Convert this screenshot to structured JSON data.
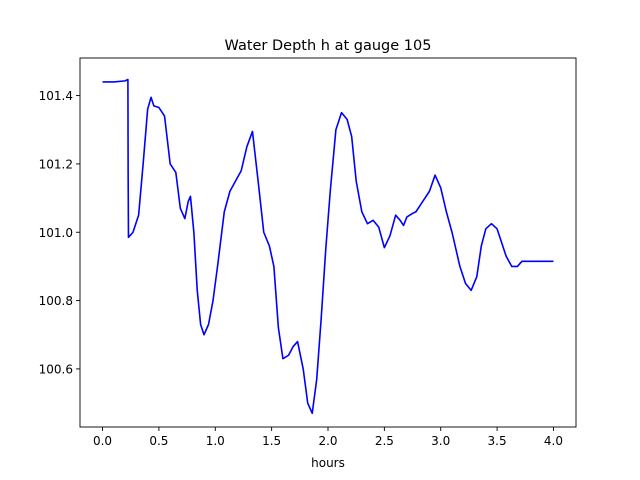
{
  "chart_data": {
    "type": "line",
    "title": "Water Depth h at gauge 105",
    "xlabel": "hours",
    "ylabel": "",
    "xlim": [
      -0.2,
      4.2
    ],
    "ylim": [
      100.43,
      101.51
    ],
    "xticks": [
      0.0,
      0.5,
      1.0,
      1.5,
      2.0,
      2.5,
      3.0,
      3.5,
      4.0
    ],
    "xtick_labels": [
      "0.0",
      "0.5",
      "1.0",
      "1.5",
      "2.0",
      "2.5",
      "3.0",
      "3.5",
      "4.0"
    ],
    "yticks": [
      100.6,
      100.8,
      101.0,
      101.2,
      101.4
    ],
    "ytick_labels": [
      "100.6",
      "100.8",
      "101.0",
      "101.2",
      "101.4"
    ],
    "grid": false,
    "legend": "none",
    "series": [
      {
        "color": "#0000ff",
        "x": [
          0.0,
          0.1,
          0.2,
          0.225,
          0.227,
          0.23,
          0.27,
          0.32,
          0.36,
          0.4,
          0.43,
          0.455,
          0.5,
          0.55,
          0.6,
          0.65,
          0.69,
          0.73,
          0.76,
          0.78,
          0.81,
          0.84,
          0.87,
          0.9,
          0.94,
          0.98,
          1.02,
          1.08,
          1.13,
          1.18,
          1.23,
          1.28,
          1.33,
          1.38,
          1.43,
          1.48,
          1.52,
          1.56,
          1.6,
          1.65,
          1.69,
          1.73,
          1.78,
          1.82,
          1.86,
          1.9,
          1.94,
          1.98,
          2.02,
          2.07,
          2.12,
          2.17,
          2.21,
          2.25,
          2.3,
          2.35,
          2.4,
          2.45,
          2.5,
          2.55,
          2.6,
          2.64,
          2.67,
          2.7,
          2.75,
          2.78,
          2.82,
          2.86,
          2.9,
          2.95,
          3.0,
          3.05,
          3.1,
          3.17,
          3.22,
          3.27,
          3.32,
          3.36,
          3.4,
          3.45,
          3.5,
          3.54,
          3.58,
          3.63,
          3.68,
          3.72,
          3.76,
          3.8,
          3.85,
          3.9,
          3.95,
          4.0
        ],
        "y": [
          101.44,
          101.44,
          101.443,
          101.447,
          101.18,
          100.985,
          101.0,
          101.05,
          101.2,
          101.36,
          101.395,
          101.37,
          101.365,
          101.34,
          101.2,
          101.175,
          101.07,
          101.04,
          101.09,
          101.105,
          101.0,
          100.83,
          100.73,
          100.7,
          100.73,
          100.8,
          100.9,
          101.06,
          101.12,
          101.15,
          101.18,
          101.25,
          101.295,
          101.15,
          101.0,
          100.96,
          100.9,
          100.72,
          100.63,
          100.64,
          100.665,
          100.68,
          100.6,
          100.5,
          100.47,
          100.57,
          100.75,
          100.95,
          101.12,
          101.3,
          101.35,
          101.33,
          101.28,
          101.15,
          101.06,
          101.025,
          101.035,
          101.015,
          100.955,
          100.99,
          101.05,
          101.035,
          101.02,
          101.045,
          101.055,
          101.06,
          101.08,
          101.1,
          101.12,
          101.167,
          101.13,
          101.06,
          101.0,
          100.9,
          100.85,
          100.83,
          100.87,
          100.96,
          101.01,
          101.025,
          101.01,
          100.97,
          100.93,
          100.9,
          100.9,
          100.915,
          100.915,
          100.915,
          100.915,
          100.915,
          100.915,
          100.915
        ]
      }
    ]
  }
}
